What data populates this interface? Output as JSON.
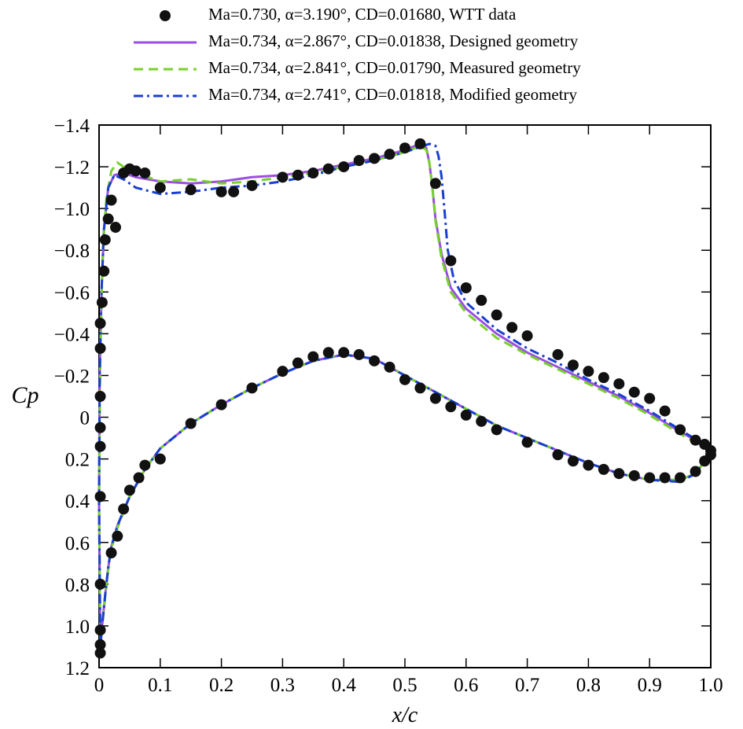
{
  "chart_data": {
    "type": "line",
    "xlabel": "x/c",
    "ylabel": "Cp",
    "xlim": [
      0,
      1
    ],
    "ylim": [
      1.2,
      -1.4
    ],
    "xticks": [
      0,
      0.1,
      0.2,
      0.3,
      0.4,
      0.5,
      0.6,
      0.7,
      0.8,
      0.9,
      {
        "value": 1,
        "label": "1.0"
      }
    ],
    "yticks": [
      {
        "value": -1.4,
        "label": "−1.4"
      },
      {
        "value": -1.2,
        "label": "−1.2"
      },
      {
        "value": -1,
        "label": "−1.0"
      },
      {
        "value": -0.8,
        "label": "−0.8"
      },
      {
        "value": -0.6,
        "label": "−0.6"
      },
      {
        "value": -0.4,
        "label": "−0.4"
      },
      {
        "value": -0.2,
        "label": "−0.2"
      },
      0,
      0.2,
      0.4,
      0.6,
      0.8,
      {
        "value": 1,
        "label": "1.0"
      },
      1.2
    ],
    "legend": "top",
    "series": [
      {
        "name": "Ma=0.730, α=3.190°, CD=0.01680, WTT data",
        "type": "scatter",
        "color": "#111111",
        "x": [
          0.002,
          0.002,
          0.002,
          0.002,
          0.002,
          0.002,
          0.002,
          0.002,
          0.002,
          0.002,
          0.005,
          0.008,
          0.01,
          0.015,
          0.02,
          0.027,
          0.04,
          0.05,
          0.06,
          0.075,
          0.1,
          0.15,
          0.2,
          0.22,
          0.25,
          0.3,
          0.325,
          0.35,
          0.375,
          0.4,
          0.425,
          0.45,
          0.475,
          0.5,
          0.525,
          0.55,
          0.575,
          0.6,
          0.625,
          0.65,
          0.675,
          0.7,
          0.75,
          0.775,
          0.8,
          0.825,
          0.85,
          0.875,
          0.9,
          0.925,
          0.95,
          0.975,
          0.99,
          1.0,
          0.02,
          0.03,
          0.04,
          0.05,
          0.065,
          0.075,
          0.1,
          0.15,
          0.2,
          0.25,
          0.3,
          0.325,
          0.35,
          0.375,
          0.4,
          0.425,
          0.45,
          0.475,
          0.5,
          0.525,
          0.55,
          0.575,
          0.6,
          0.625,
          0.65,
          0.7,
          0.75,
          0.775,
          0.8,
          0.825,
          0.85,
          0.875,
          0.9,
          0.925,
          0.95,
          0.975,
          0.99,
          1.0
        ],
        "values": [
          -0.45,
          -0.33,
          -0.1,
          0.05,
          0.14,
          0.38,
          0.8,
          1.02,
          1.09,
          1.13,
          -0.55,
          -0.7,
          -0.85,
          -0.95,
          -1.04,
          -0.91,
          -1.17,
          -1.19,
          -1.18,
          -1.17,
          -1.1,
          -1.09,
          -1.08,
          -1.08,
          -1.11,
          -1.15,
          -1.16,
          -1.17,
          -1.19,
          -1.2,
          -1.23,
          -1.24,
          -1.26,
          -1.29,
          -1.31,
          -1.12,
          -0.75,
          -0.62,
          -0.56,
          -0.49,
          -0.43,
          -0.39,
          -0.3,
          -0.25,
          -0.22,
          -0.19,
          -0.16,
          -0.12,
          -0.09,
          -0.03,
          0.06,
          0.11,
          0.13,
          0.16,
          0.65,
          0.57,
          0.44,
          0.35,
          0.29,
          0.23,
          0.2,
          0.03,
          -0.06,
          -0.14,
          -0.22,
          -0.26,
          -0.29,
          -0.31,
          -0.31,
          -0.3,
          -0.27,
          -0.24,
          -0.18,
          -0.14,
          -0.09,
          -0.05,
          -0.01,
          0.02,
          0.06,
          0.12,
          0.18,
          0.21,
          0.23,
          0.25,
          0.27,
          0.28,
          0.29,
          0.29,
          0.29,
          0.26,
          0.21,
          0.18
        ]
      },
      {
        "name": "Ma=0.734, α=2.867°, CD=0.01838, Designed geometry",
        "type": "line",
        "color": "#9b4fe0",
        "dash": "none",
        "x": [
          1,
          0.95,
          0.9,
          0.85,
          0.8,
          0.75,
          0.7,
          0.65,
          0.6,
          0.575,
          0.56,
          0.55,
          0.545,
          0.54,
          0.535,
          0.525,
          0.5,
          0.45,
          0.4,
          0.35,
          0.3,
          0.25,
          0.2,
          0.15,
          0.1,
          0.06,
          0.04,
          0.025,
          0.015,
          0.008,
          0.004,
          0.001,
          0,
          0.002,
          0.005,
          0.01,
          0.015,
          0.02,
          0.03,
          0.05,
          0.075,
          0.1,
          0.15,
          0.2,
          0.25,
          0.3,
          0.35,
          0.4,
          0.45,
          0.5,
          0.55,
          0.6,
          0.65,
          0.7,
          0.75,
          0.8,
          0.85,
          0.9,
          0.95,
          0.975,
          1
        ],
        "values": [
          0.15,
          0.07,
          -0.02,
          -0.1,
          -0.17,
          -0.24,
          -0.31,
          -0.4,
          -0.52,
          -0.62,
          -0.78,
          -0.95,
          -1.1,
          -1.22,
          -1.29,
          -1.31,
          -1.28,
          -1.24,
          -1.21,
          -1.18,
          -1.16,
          -1.15,
          -1.13,
          -1.12,
          -1.13,
          -1.15,
          -1.17,
          -1.16,
          -1.1,
          -0.9,
          -0.6,
          -0.2,
          0.4,
          1.1,
          1,
          0.85,
          0.72,
          0.62,
          0.52,
          0.38,
          0.25,
          0.15,
          0.03,
          -0.06,
          -0.14,
          -0.21,
          -0.27,
          -0.3,
          -0.28,
          -0.2,
          -0.12,
          -0.04,
          0.04,
          0.1,
          0.16,
          0.22,
          0.27,
          0.3,
          0.3,
          0.27,
          0.17
        ]
      },
      {
        "name": "Ma=0.734, α=2.841°, CD=0.01790, Measured geometry",
        "type": "line",
        "color": "#77d12a",
        "dash": "12 7",
        "x": [
          1,
          0.95,
          0.9,
          0.85,
          0.8,
          0.75,
          0.7,
          0.65,
          0.6,
          0.575,
          0.56,
          0.55,
          0.545,
          0.54,
          0.535,
          0.525,
          0.5,
          0.45,
          0.4,
          0.35,
          0.3,
          0.25,
          0.2,
          0.15,
          0.1,
          0.06,
          0.04,
          0.03,
          0.02,
          0.012,
          0.006,
          0.002,
          0,
          0.002,
          0.005,
          0.01,
          0.015,
          0.02,
          0.03,
          0.05,
          0.075,
          0.1,
          0.15,
          0.2,
          0.25,
          0.3,
          0.35,
          0.4,
          0.45,
          0.5,
          0.55,
          0.6,
          0.65,
          0.7,
          0.75,
          0.8,
          0.85,
          0.9,
          0.95,
          0.975,
          1
        ],
        "values": [
          0.16,
          0.08,
          -0.01,
          -0.09,
          -0.16,
          -0.23,
          -0.3,
          -0.38,
          -0.5,
          -0.6,
          -0.76,
          -0.94,
          -1.1,
          -1.22,
          -1.28,
          -1.3,
          -1.27,
          -1.23,
          -1.2,
          -1.17,
          -1.15,
          -1.13,
          -1.12,
          -1.14,
          -1.13,
          -1.17,
          -1.2,
          -1.22,
          -1.18,
          -1.05,
          -0.8,
          -0.3,
          0.4,
          1.1,
          1,
          0.86,
          0.73,
          0.63,
          0.53,
          0.38,
          0.25,
          0.15,
          0.03,
          -0.06,
          -0.14,
          -0.21,
          -0.27,
          -0.3,
          -0.28,
          -0.2,
          -0.12,
          -0.04,
          0.04,
          0.1,
          0.16,
          0.22,
          0.27,
          0.3,
          0.3,
          0.27,
          0.17
        ]
      },
      {
        "name": "Ma=0.734, α=2.741°, CD=0.01818, Modified geometry",
        "type": "line",
        "color": "#1a3fd0",
        "dash": "12 5 3 5",
        "x": [
          1,
          0.95,
          0.9,
          0.85,
          0.8,
          0.75,
          0.7,
          0.65,
          0.6,
          0.58,
          0.57,
          0.565,
          0.56,
          0.555,
          0.55,
          0.54,
          0.5,
          0.45,
          0.4,
          0.35,
          0.3,
          0.25,
          0.2,
          0.15,
          0.1,
          0.06,
          0.04,
          0.025,
          0.015,
          0.008,
          0.004,
          0.001,
          0,
          0.002,
          0.005,
          0.01,
          0.015,
          0.02,
          0.03,
          0.05,
          0.075,
          0.1,
          0.15,
          0.2,
          0.25,
          0.3,
          0.35,
          0.4,
          0.45,
          0.5,
          0.55,
          0.6,
          0.65,
          0.7,
          0.75,
          0.8,
          0.85,
          0.9,
          0.95,
          0.975,
          1
        ],
        "values": [
          0.15,
          0.06,
          -0.03,
          -0.11,
          -0.18,
          -0.26,
          -0.33,
          -0.42,
          -0.55,
          -0.66,
          -0.8,
          -0.98,
          -1.15,
          -1.25,
          -1.3,
          -1.31,
          -1.27,
          -1.23,
          -1.2,
          -1.16,
          -1.13,
          -1.11,
          -1.1,
          -1.08,
          -1.07,
          -1.1,
          -1.14,
          -1.16,
          -1.1,
          -0.9,
          -0.6,
          -0.2,
          0.4,
          1.1,
          1,
          0.85,
          0.72,
          0.62,
          0.52,
          0.38,
          0.25,
          0.15,
          0.03,
          -0.06,
          -0.14,
          -0.21,
          -0.27,
          -0.3,
          -0.28,
          -0.2,
          -0.12,
          -0.04,
          0.04,
          0.1,
          0.16,
          0.22,
          0.27,
          0.3,
          0.31,
          0.27,
          0.17
        ]
      }
    ]
  }
}
